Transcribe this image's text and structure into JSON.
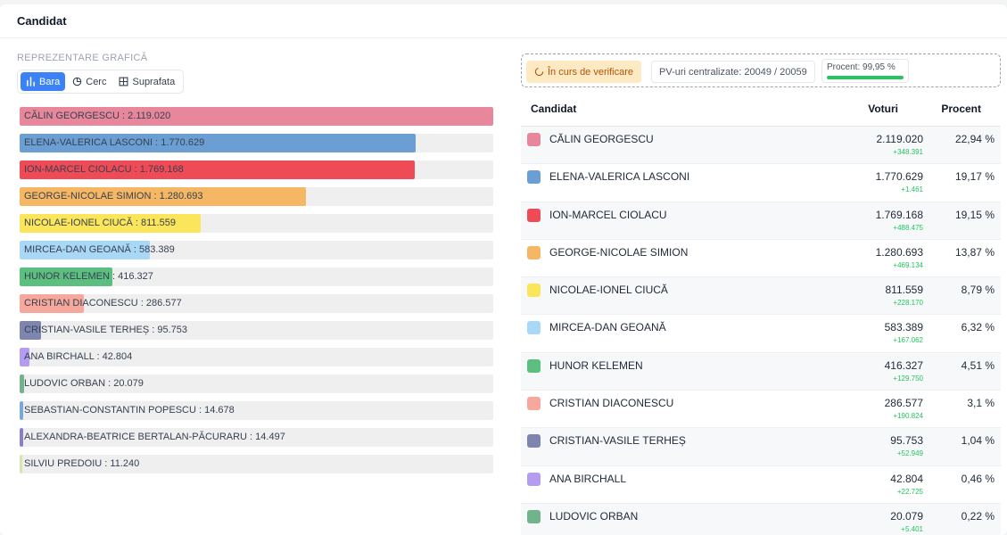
{
  "header": {
    "title": "Candidat"
  },
  "chart_section": {
    "label": "REPREZENTARE GRAFICĂ",
    "views": [
      {
        "label": "Bara",
        "icon": "bar-chart-icon",
        "active": true
      },
      {
        "label": "Cerc",
        "icon": "pie-chart-icon",
        "active": false
      },
      {
        "label": "Suprafata",
        "icon": "area-grid-icon",
        "active": false
      }
    ]
  },
  "status": {
    "verification": "În curs de verificare",
    "pv": "PV-uri centralizate: 20049 / 20059",
    "percent_label": "Procent: 99,95 %",
    "percent_value": 99.95
  },
  "table": {
    "headers": {
      "candidate": "Candidat",
      "votes": "Voturi",
      "percent": "Procent"
    },
    "rows": [
      {
        "name": "CĂLIN GEORGESCU",
        "votes": "2.119.020",
        "delta": "+348.391",
        "percent": "22,94 %",
        "color": "#e8879c"
      },
      {
        "name": "ELENA-VALERICA LASCONI",
        "votes": "1.770.629",
        "delta": "+1.461",
        "percent": "19,17 %",
        "color": "#6b9fd4"
      },
      {
        "name": "ION-MARCEL CIOLACU",
        "votes": "1.769.168",
        "delta": "+488.475",
        "percent": "19,15 %",
        "color": "#ef4b57"
      },
      {
        "name": "GEORGE-NICOLAE SIMION",
        "votes": "1.280.693",
        "delta": "+469.134",
        "percent": "13,87 %",
        "color": "#f6b765"
      },
      {
        "name": "NICOLAE-IONEL CIUCĂ",
        "votes": "811.559",
        "delta": "+228.170",
        "percent": "8,79 %",
        "color": "#fbe55a"
      },
      {
        "name": "MIRCEA-DAN GEOANĂ",
        "votes": "583.389",
        "delta": "+167.062",
        "percent": "6,32 %",
        "color": "#a9d8f7"
      },
      {
        "name": "HUNOR KELEMEN",
        "votes": "416.327",
        "delta": "+129.750",
        "percent": "4,51 %",
        "color": "#5cbf7f"
      },
      {
        "name": "CRISTIAN DIACONESCU",
        "votes": "286.577",
        "delta": "+190.824",
        "percent": "3,1 %",
        "color": "#f7a89c"
      },
      {
        "name": "CRISTIAN-VASILE TERHEȘ",
        "votes": "95.753",
        "delta": "+52.949",
        "percent": "1,04 %",
        "color": "#7e86b0"
      },
      {
        "name": "ANA BIRCHALL",
        "votes": "42.804",
        "delta": "+22.725",
        "percent": "0,46 %",
        "color": "#b49cf0"
      },
      {
        "name": "LUDOVIC ORBAN",
        "votes": "20.079",
        "delta": "+5.401",
        "percent": "0,22 %",
        "color": "#6fb48a"
      }
    ]
  },
  "chart_data": {
    "type": "bar",
    "orientation": "horizontal",
    "categories": [
      "CĂLIN GEORGESCU",
      "ELENA-VALERICA LASCONI",
      "ION-MARCEL CIOLACU",
      "GEORGE-NICOLAE SIMION",
      "NICOLAE-IONEL CIUCĂ",
      "MIRCEA-DAN GEOANĂ",
      "HUNOR KELEMEN",
      "CRISTIAN DIACONESCU",
      "CRISTIAN-VASILE TERHEȘ",
      "ANA BIRCHALL",
      "LUDOVIC ORBAN",
      "SEBASTIAN-CONSTANTIN POPESCU",
      "ALEXANDRA-BEATRICE BERTALAN-PĂCURARU",
      "SILVIU PREDOIU"
    ],
    "labels": [
      "2.119.020",
      "1.770.629",
      "1.769.168",
      "1.280.693",
      "811.559",
      "583.389",
      "416.327",
      "286.577",
      "95.753",
      "42.804",
      "20.079",
      "14.678",
      "14.497",
      "11.240"
    ],
    "values": [
      2119020,
      1770629,
      1769168,
      1280693,
      811559,
      583389,
      416327,
      286577,
      95753,
      42804,
      20079,
      14678,
      14497,
      11240
    ],
    "colors": [
      "#e8879c",
      "#6b9fd4",
      "#ef4b57",
      "#f6b765",
      "#fbe55a",
      "#a9d8f7",
      "#5cbf7f",
      "#f7a89c",
      "#7e86b0",
      "#b49cf0",
      "#6fb48a",
      "#7aa7d8",
      "#8b7fc4",
      "#d6e6a8"
    ],
    "xlim": [
      0,
      2119020
    ]
  }
}
